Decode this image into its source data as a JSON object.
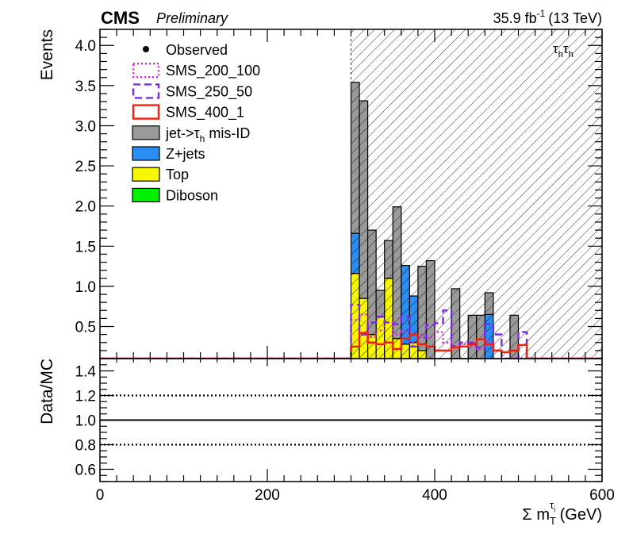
{
  "header": {
    "experiment": "CMS",
    "status": "Preliminary",
    "lumi_main": "35.9 fb",
    "lumi_sup": "-1",
    "lumi_energy": "(13 TeV)"
  },
  "channel": {
    "main": "τ",
    "sub": "h"
  },
  "legend": [
    {
      "label_main": "Observed",
      "label_sub": "",
      "label_tail": "",
      "style": "marker",
      "color": "#000000"
    },
    {
      "label_main": "SMS_200_100",
      "label_sub": "",
      "label_tail": "",
      "style": "dotted",
      "color": "#e020e0"
    },
    {
      "label_main": "SMS_250_50",
      "label_sub": "",
      "label_tail": "",
      "style": "dashed",
      "color": "#7a2be0"
    },
    {
      "label_main": "SMS_400_1",
      "label_sub": "",
      "label_tail": "",
      "style": "solid",
      "color": "#ee2010"
    },
    {
      "label_main": "jet->τ",
      "label_sub": "h",
      "label_tail": " mis-ID",
      "style": "fill",
      "color": "#9a9a9a"
    },
    {
      "label_main": "Z+jets",
      "label_sub": "",
      "label_tail": "",
      "style": "fill",
      "color": "#2a8ef2"
    },
    {
      "label_main": "Top",
      "label_sub": "",
      "label_tail": "",
      "style": "fill",
      "color": "#f7f700"
    },
    {
      "label_main": "Diboson",
      "label_sub": "",
      "label_tail": "",
      "style": "fill",
      "color": "#00f000"
    }
  ],
  "x_axis": {
    "label_main": "Σ m",
    "label_sub": "T",
    "label_sup": "τ",
    "label_sup_sub": "i",
    "label_tail": " (GeV)",
    "ticks": [
      "0",
      "200",
      "400",
      "600"
    ]
  },
  "chart_data": [
    {
      "type": "bar",
      "stacked": true,
      "title": "",
      "ylabel": "Events",
      "x_range": [
        0,
        600
      ],
      "ylim": [
        0.1,
        4.2
      ],
      "y_ticks": [
        "0.5",
        "1.0",
        "1.5",
        "2.0",
        "2.5",
        "3.0",
        "3.5",
        "4.0"
      ],
      "bin_width": 10,
      "blinded_region": [
        300,
        600
      ],
      "bin_edges": [
        300,
        310,
        320,
        330,
        340,
        350,
        360,
        370,
        380,
        390,
        400,
        410,
        420,
        430,
        440,
        450,
        460,
        470,
        480,
        490,
        500,
        510
      ],
      "series": [
        {
          "name": "Diboson",
          "color": "#00f000",
          "values": [
            0,
            0,
            0,
            0,
            0,
            0,
            0,
            0,
            0,
            0,
            0,
            0,
            0,
            0,
            0,
            0,
            0,
            0,
            0,
            0,
            0
          ]
        },
        {
          "name": "Top",
          "color": "#f7f700",
          "values": [
            1.06,
            0.75,
            0.3,
            0.52,
            1.0,
            0.25,
            0.18,
            0.2,
            0.1,
            0,
            0,
            0,
            0,
            0,
            0,
            0,
            0,
            0,
            0,
            0,
            0
          ]
        },
        {
          "name": "Z+jets",
          "color": "#2a8ef2",
          "values": [
            0.5,
            0,
            0,
            0,
            0,
            0,
            0.98,
            0.58,
            0,
            0,
            0,
            0,
            0,
            0,
            0,
            0,
            0.55,
            0,
            0,
            0,
            0
          ]
        },
        {
          "name": "jet->τh mis-ID",
          "color": "#9a9a9a",
          "values": [
            1.88,
            2.46,
            1.3,
            0.33,
            0.47,
            1.64,
            0,
            0,
            1.05,
            1.22,
            0,
            0,
            0.87,
            0,
            0.54,
            0.54,
            0.27,
            0,
            0,
            0.54,
            0
          ]
        }
      ],
      "signals": [
        {
          "name": "SMS_200_100",
          "color": "#e020e0",
          "style": "dotted",
          "values": [
            0.48,
            0.55,
            0.27,
            0.35,
            0.45,
            0.3,
            0.34,
            0.2,
            0.3,
            0.27,
            0.33,
            0.2,
            0.15,
            0.18,
            0.16,
            0.12,
            0.22,
            0.1,
            0,
            0,
            0
          ]
        },
        {
          "name": "SMS_250_50",
          "color": "#7a2be0",
          "style": "dashed",
          "values": [
            0.67,
            0.3,
            0.45,
            0.52,
            0.45,
            0.43,
            0.52,
            0.15,
            0.26,
            0.42,
            0.44,
            0.6,
            0.15,
            0.2,
            0.2,
            0.14,
            0.43,
            0.3,
            0,
            0,
            0.33
          ]
        },
        {
          "name": "SMS_400_1",
          "color": "#ee2010",
          "style": "solid",
          "values": [
            0.15,
            0.32,
            0.2,
            0.18,
            0.2,
            0.12,
            0.25,
            0.3,
            0.18,
            0.15,
            0.1,
            0.1,
            0.14,
            0.15,
            0.18,
            0.24,
            0.18,
            0.1,
            0.08,
            0.1,
            0.17
          ]
        }
      ]
    },
    {
      "type": "line",
      "title": "",
      "ylabel": "Data/MC",
      "x_range": [
        0,
        600
      ],
      "ylim": [
        0.5,
        1.5
      ],
      "y_ticks": [
        "0.6",
        "0.8",
        "1.0",
        "1.2",
        "1.4"
      ],
      "reference_lines": [
        {
          "y": 1.0,
          "style": "solid"
        },
        {
          "y": 0.8,
          "style": "dotted"
        },
        {
          "y": 1.2,
          "style": "dotted"
        }
      ]
    }
  ]
}
